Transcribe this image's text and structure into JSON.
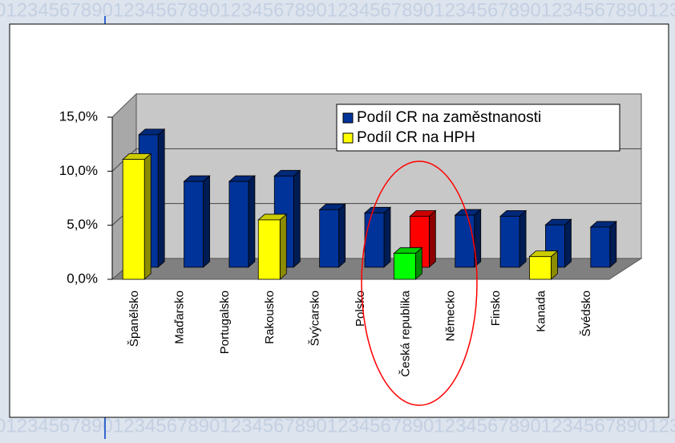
{
  "watermark": "0123456789012345678901234567890123456789012345678901234567890123456789",
  "chart_data": {
    "type": "bar3d",
    "categories": [
      "Španělsko",
      "Maďarsko",
      "Portugalsko",
      "Rakousko",
      "Švýcarsko",
      "Polsko",
      "Česká republika",
      "Německo",
      "Finsko",
      "Kanada",
      "Švédsko"
    ],
    "series": [
      {
        "name": "Podíl CR na zaměstnanosti",
        "color": "#003399",
        "colors": [
          "#003399",
          "#003399",
          "#003399",
          "#003399",
          "#003399",
          "#003399",
          "#ff0000",
          "#003399",
          "#003399",
          "#003399",
          "#003399"
        ],
        "values": [
          12.2,
          7.9,
          7.9,
          8.4,
          5.3,
          5.0,
          4.7,
          4.8,
          4.7,
          3.9,
          3.7
        ]
      },
      {
        "name": "Podíl CR na HPH",
        "color": "#ffff00",
        "colors": [
          "#ffff00",
          "#ffff00",
          "#ffff00",
          "#ffff00",
          "#ffff00",
          "#ffff00",
          "#00ff00",
          "#ffff00",
          "#ffff00",
          "#ffff00",
          "#ffff00"
        ],
        "values": [
          11.1,
          null,
          null,
          5.5,
          null,
          null,
          2.4,
          null,
          null,
          2.1,
          null
        ]
      }
    ],
    "ylim": [
      0,
      15
    ],
    "yticks": [
      {
        "value": 0,
        "label": "0,0%"
      },
      {
        "value": 5,
        "label": "5,0%"
      },
      {
        "value": 10,
        "label": "10,0%"
      },
      {
        "value": 15,
        "label": "15,0%"
      }
    ],
    "grid": true,
    "legend": "top-right"
  }
}
